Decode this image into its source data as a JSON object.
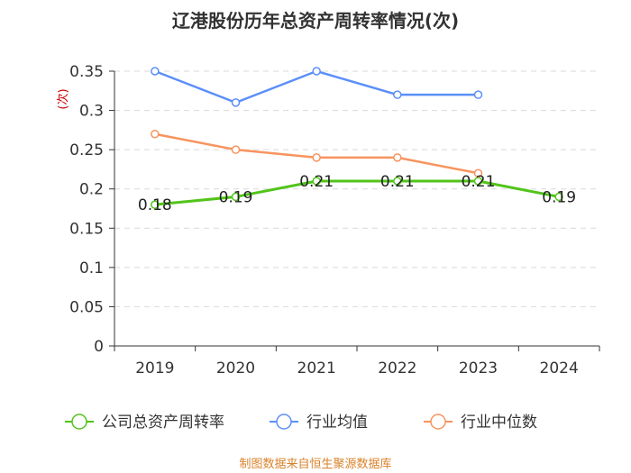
{
  "chart_data": {
    "type": "line",
    "title": "辽港股份历年总资产周转率情况(次)",
    "ylabel": "(次)",
    "xlabel": "",
    "categories": [
      "2019",
      "2020",
      "2021",
      "2022",
      "2023",
      "2024"
    ],
    "ylim": [
      0,
      0.35
    ],
    "yticks": [
      "0",
      "0.05",
      "0.1",
      "0.15",
      "0.2",
      "0.25",
      "0.3",
      "0.35"
    ],
    "grid": true,
    "legend_position": "bottom",
    "series": [
      {
        "name": "公司总资产周转率",
        "color": "#52c41a",
        "values": [
          0.18,
          0.19,
          0.21,
          0.21,
          0.21,
          0.19
        ],
        "labels": [
          "0.18",
          "0.19",
          "0.21",
          "0.21",
          "0.21",
          "0.19"
        ]
      },
      {
        "name": "行业均值",
        "color": "#5b8ff9",
        "values": [
          0.35,
          0.31,
          0.35,
          0.32,
          0.32,
          null
        ]
      },
      {
        "name": "行业中位数",
        "color": "#f7945e",
        "values": [
          0.27,
          0.25,
          0.24,
          0.24,
          0.22,
          null
        ]
      }
    ],
    "source": "制图数据来自恒生聚源数据库"
  }
}
